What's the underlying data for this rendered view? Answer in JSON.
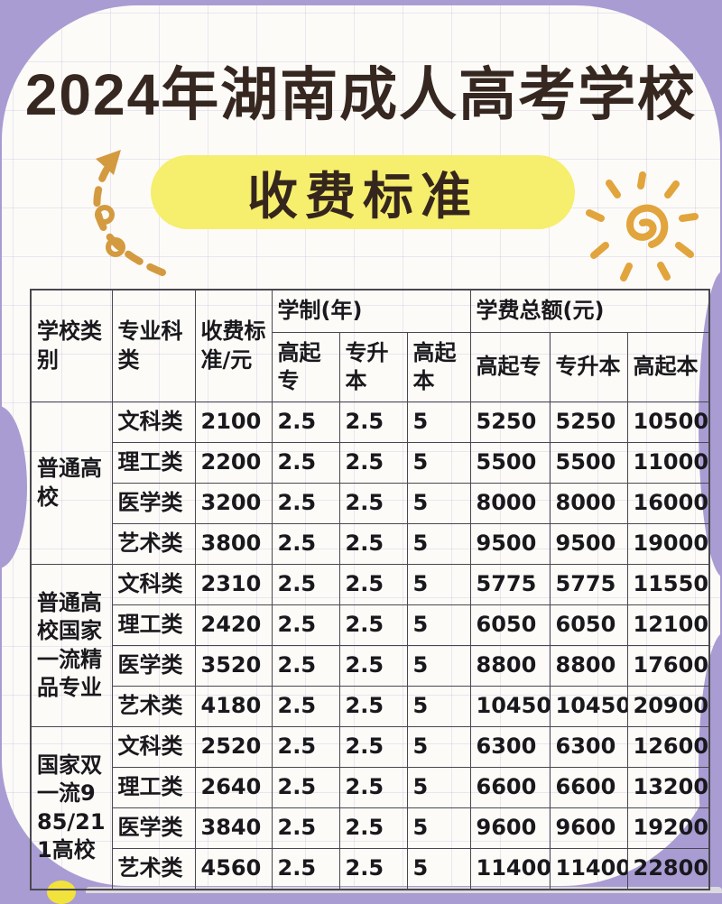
{
  "header": {
    "title": "2024年湖南成人高考学校",
    "subtitle": "收费标准"
  },
  "decorations": {
    "arrow_icon": "dashed-curly-arrow",
    "sun_icon": "hand-drawn-spiral-sun"
  },
  "colors": {
    "background_purple": "#a99cd3",
    "card_white": "#fcfbf8",
    "highlight_yellow": "#f6ee6d",
    "accent_orange": "#d99f3e",
    "title_brown": "#362820",
    "table_line": "#4a484e"
  },
  "table": {
    "headers": {
      "school_category": "学校类别",
      "major_category": "专业科类",
      "fee_standard": "收费标准/元",
      "duration_group": "学制(年)",
      "tuition_group": "学费总额(元)",
      "sub_columns": [
        "高起专",
        "专升本",
        "高起本"
      ]
    },
    "groups": [
      {
        "school": "普通高校",
        "rows": [
          {
            "major": "文科类",
            "fee": "2100",
            "duration_years": [
              "2.5",
              "2.5",
              "5"
            ],
            "tuition_total": [
              "5250",
              "5250",
              "10500"
            ]
          },
          {
            "major": "理工类",
            "fee": "2200",
            "duration_years": [
              "2.5",
              "2.5",
              "5"
            ],
            "tuition_total": [
              "5500",
              "5500",
              "11000"
            ]
          },
          {
            "major": "医学类",
            "fee": "3200",
            "duration_years": [
              "2.5",
              "2.5",
              "5"
            ],
            "tuition_total": [
              "8000",
              "8000",
              "16000"
            ]
          },
          {
            "major": "艺术类",
            "fee": "3800",
            "duration_years": [
              "2.5",
              "2.5",
              "5"
            ],
            "tuition_total": [
              "9500",
              "9500",
              "19000"
            ]
          }
        ]
      },
      {
        "school": "普通高校国家一流精品专业",
        "rows": [
          {
            "major": "文科类",
            "fee": "2310",
            "duration_years": [
              "2.5",
              "2.5",
              "5"
            ],
            "tuition_total": [
              "5775",
              "5775",
              "11550"
            ]
          },
          {
            "major": "理工类",
            "fee": "2420",
            "duration_years": [
              "2.5",
              "2.5",
              "5"
            ],
            "tuition_total": [
              "6050",
              "6050",
              "12100"
            ]
          },
          {
            "major": "医学类",
            "fee": "3520",
            "duration_years": [
              "2.5",
              "2.5",
              "5"
            ],
            "tuition_total": [
              "8800",
              "8800",
              "17600"
            ]
          },
          {
            "major": "艺术类",
            "fee": "4180",
            "duration_years": [
              "2.5",
              "2.5",
              "5"
            ],
            "tuition_total": [
              "10450",
              "10450",
              "20900"
            ]
          }
        ]
      },
      {
        "school": "国家双一流985/211高校",
        "rows": [
          {
            "major": "文科类",
            "fee": "2520",
            "duration_years": [
              "2.5",
              "2.5",
              "5"
            ],
            "tuition_total": [
              "6300",
              "6300",
              "12600"
            ]
          },
          {
            "major": "理工类",
            "fee": "2640",
            "duration_years": [
              "2.5",
              "2.5",
              "5"
            ],
            "tuition_total": [
              "6600",
              "6600",
              "13200"
            ]
          },
          {
            "major": "医学类",
            "fee": "3840",
            "duration_years": [
              "2.5",
              "2.5",
              "5"
            ],
            "tuition_total": [
              "9600",
              "9600",
              "19200"
            ]
          },
          {
            "major": "艺术类",
            "fee": "4560",
            "duration_years": [
              "2.5",
              "2.5",
              "5"
            ],
            "tuition_total": [
              "11400",
              "11400",
              "22800"
            ]
          }
        ]
      }
    ]
  }
}
